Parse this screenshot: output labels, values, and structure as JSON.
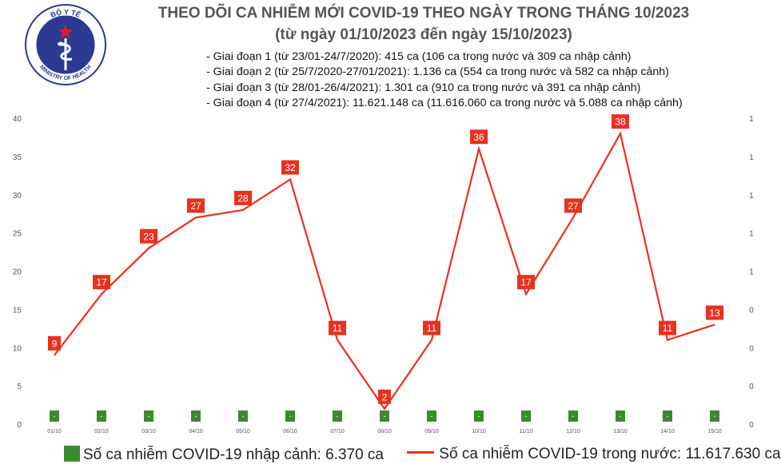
{
  "header": {
    "logo_top_text": "BỘ Y TẾ",
    "logo_bottom_text": "MINISTRY OF HEALTH",
    "title": "THEO DÕI CA NHIỄM MỚI COVID-19 THEO NGÀY TRONG THÁNG 10/2023",
    "subtitle": "(từ ngày 01/10/2023 đến ngày 15/10/2023)"
  },
  "notes": [
    "- Giai đoạn 1 (từ 23/01-24/7/2020): 415 ca (106 ca trong nước và 309 ca nhập cảnh)",
    "- Giai đoạn 2 (từ 25/7/2020-27/01/2021): 1.136 ca (554 ca trong nước và 582 ca nhập cảnh)",
    "- Giai đoạn 3 (từ 28/01-26/4/2021): 1.301 ca (910 ca trong nước và 391 ca nhập cảnh)",
    "- Giai đoạn 4 (từ 27/4/2021): 11.621.148 ca (11.616.060 ca trong nước và 5.088 ca nhập cảnh)"
  ],
  "colors": {
    "line": "#e8311f",
    "bar": "#3a8a2e",
    "label_bg": "#e8311f"
  },
  "chart_data": {
    "type": "line",
    "categories": [
      "01/10",
      "02/10",
      "03/10",
      "04/10",
      "05/10",
      "06/10",
      "07/10",
      "08/10",
      "09/10",
      "10/10",
      "11/10",
      "12/10",
      "13/10",
      "14/10",
      "15/10"
    ],
    "series": [
      {
        "name": "Số ca nhiễm COVID-19 trong nước: 11.617.630 ca",
        "type": "line",
        "values": [
          9,
          17,
          23,
          27,
          28,
          32,
          11,
          2,
          11,
          36,
          17,
          27,
          38,
          11,
          13
        ]
      },
      {
        "name": "Số ca nhiễm COVID-19 nhập cảnh: 6.370 ca",
        "type": "bar",
        "axis": "right",
        "values": [
          0,
          0,
          0,
          0,
          0,
          0,
          0,
          0,
          0,
          0,
          0,
          0,
          0,
          0,
          0
        ],
        "labels": [
          "-",
          "-",
          "-",
          "-",
          "-",
          "-",
          "-",
          "-",
          "-",
          "-",
          "-",
          "-",
          "-",
          "-",
          "-"
        ]
      }
    ],
    "ylim": [
      0,
      40
    ],
    "y_ticks": [
      0,
      5,
      10,
      15,
      20,
      25,
      30,
      35,
      40
    ],
    "y_tick_labels": [
      "0",
      "5",
      "10",
      "15",
      "20",
      "25",
      "30",
      "35",
      "40"
    ],
    "y2_tick_labels": [
      "0",
      "0",
      "0",
      "0",
      "1",
      "1",
      "1",
      "1",
      "1"
    ],
    "grid": false,
    "legend": "bottom"
  }
}
